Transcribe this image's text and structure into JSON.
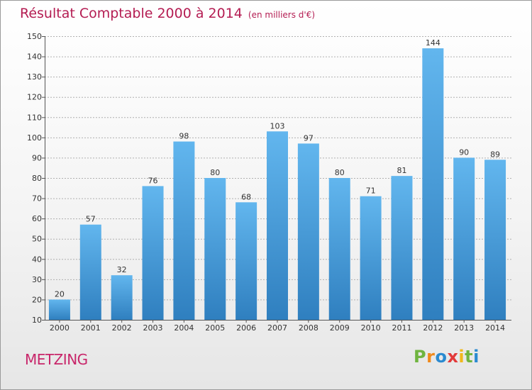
{
  "header": {
    "title": "Résultat Comptable 2000 à 2014",
    "unit": "(en milliers d'€)"
  },
  "footer": {
    "town": "METZING",
    "logo_letters": [
      "P",
      "r",
      "o",
      "x",
      "i",
      "t",
      "i"
    ],
    "logo_colors": [
      "#6fb43f",
      "#f08a1c",
      "#2a8ad0",
      "#e23a3a",
      "#f0b81c",
      "#6fb43f",
      "#2a8ad0"
    ]
  },
  "colors": {
    "bar_top": "#62b6ee",
    "bar_bottom": "#2f7fbf",
    "title": "#b41c52",
    "grid": "#b0b0b0"
  },
  "chart_data": {
    "type": "bar",
    "title": "Résultat Comptable 2000 à 2014",
    "subtitle": "(en milliers d'€)",
    "xlabel": "",
    "ylabel": "",
    "categories": [
      "2000",
      "2001",
      "2002",
      "2003",
      "2004",
      "2005",
      "2006",
      "2007",
      "2008",
      "2009",
      "2010",
      "2011",
      "2012",
      "2013",
      "2014"
    ],
    "values": [
      20,
      57,
      32,
      76,
      98,
      80,
      68,
      103,
      97,
      80,
      71,
      81,
      144,
      90,
      89
    ],
    "ylim": [
      10,
      150
    ],
    "yticks": [
      10,
      20,
      30,
      40,
      50,
      60,
      70,
      80,
      90,
      100,
      110,
      120,
      130,
      140,
      150
    ],
    "grid": true,
    "legend": "none"
  }
}
